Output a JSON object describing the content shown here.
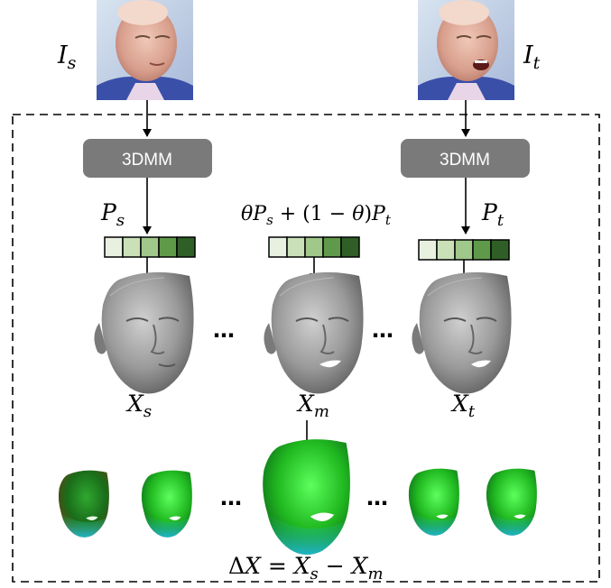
{
  "labels": {
    "source_image": "I_s",
    "target_image": "I_t",
    "model_box_left": "3DMM",
    "model_box_right": "3DMM",
    "param_source": "P_s",
    "param_target": "P_t",
    "param_mix": "θP_s + (1 − θ)P_t",
    "mesh_source": "X_s",
    "mesh_mix": "X_m",
    "mesh_target": "X_t",
    "ellipsis": "…",
    "delta": "ΔX = X_s − X_m"
  },
  "colors": {
    "box_fill": "#7a7a7a",
    "mesh_gray": "#8f8f8f",
    "param_cells": [
      "#e8f1e0",
      "#c9e0b8",
      "#9fc88a",
      "#5f9a4a",
      "#2f5f26"
    ],
    "deform_green": "#2ecc2e"
  },
  "icons": [
    "face-photo-source",
    "face-photo-target",
    "gray-face-mesh",
    "green-deformation-face"
  ]
}
